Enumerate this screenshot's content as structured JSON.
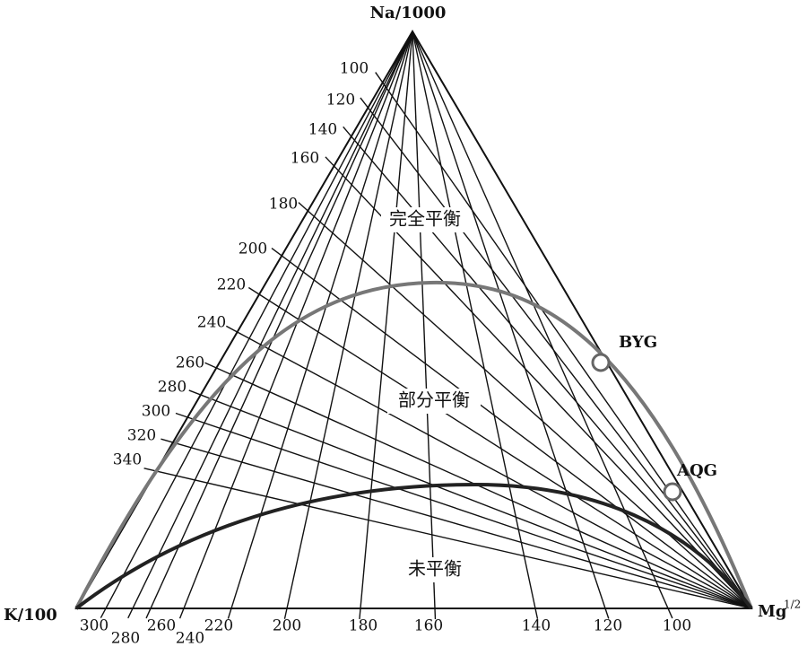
{
  "vertices": {
    "top": "Na/1000",
    "left": "K/100",
    "right": "Mg",
    "right_sup": "1/2"
  },
  "left_scale": [
    "100",
    "120",
    "140",
    "160",
    "180",
    "200",
    "220",
    "240",
    "260",
    "280",
    "300",
    "320",
    "340"
  ],
  "bottom_scale": [
    "300",
    "280",
    "260",
    "240",
    "220",
    "200",
    "180",
    "160",
    "140",
    "120",
    "100"
  ],
  "regions": [
    "完全平衡",
    "部分平衡",
    "未平衡"
  ],
  "points": [
    {
      "label": "BYG"
    },
    {
      "label": "AQG"
    }
  ]
}
